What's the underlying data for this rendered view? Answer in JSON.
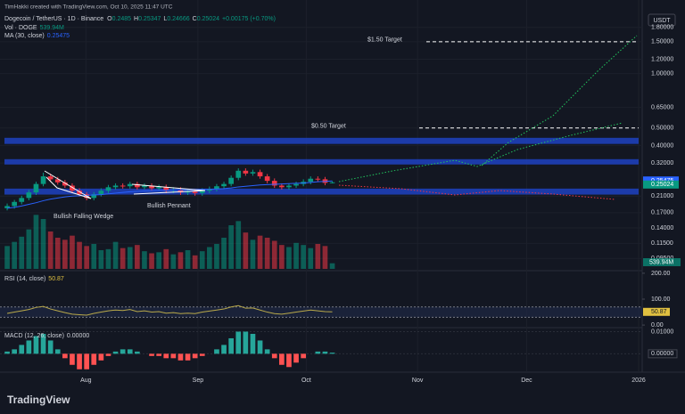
{
  "header": {
    "credit": "TimHakki created with TradingView.com, Oct 10, 2025 11:47 UTC",
    "symbol": "Dogecoin / TetherUS · 1D · Binance",
    "o_label": "O",
    "h_label": "H",
    "l_label": "L",
    "c_label": "C",
    "change": "+0.00175 (+0.70%)",
    "vol_label": "Vol · DOGE",
    "vol_value": "539.94M",
    "ma_label": "MA (30, close)",
    "currency": "USDT"
  },
  "chart_data": {
    "type": "candlestick",
    "log_scale": true,
    "grid": true,
    "up_color": "#089981",
    "down_color": "#f23645",
    "ma_color": "#2962ff",
    "xlim": [
      -0.5,
      87.4
    ],
    "xticks": [
      {
        "value": 10.9,
        "label": "Aug"
      },
      {
        "value": 26.4,
        "label": "Sep"
      },
      {
        "value": 41.4,
        "label": "Oct"
      },
      {
        "value": 56.8,
        "label": "Nov"
      },
      {
        "value": 71.9,
        "label": "Dec"
      },
      {
        "value": 87.4,
        "label": "2026"
      }
    ],
    "ylim": [
      0.085,
      2.33
    ],
    "yticks": [
      {
        "value": 1.8,
        "label": "1.80000"
      },
      {
        "value": 1.5,
        "label": "1.50000"
      },
      {
        "value": 1.2,
        "label": "1.20000"
      },
      {
        "value": 1,
        "label": "1.00000"
      },
      {
        "value": 0.65,
        "label": "0.65000"
      },
      {
        "value": 0.5,
        "label": "0.50000"
      },
      {
        "value": 0.4,
        "label": "0.40000"
      },
      {
        "value": 0.32,
        "label": "0.32000"
      },
      {
        "value": 0.21,
        "label": "0.21000"
      },
      {
        "value": 0.17,
        "label": "0.17000"
      },
      {
        "value": 0.14,
        "label": "0.14000"
      },
      {
        "value": 0.115,
        "label": "0.11500"
      },
      {
        "value": 0.095,
        "label": "0.09500"
      }
    ],
    "open": [
      0.18,
      0.185,
      0.195,
      0.205,
      0.22,
      0.245,
      0.27,
      0.26,
      0.25,
      0.24,
      0.225,
      0.215,
      0.205,
      0.215,
      0.225,
      0.235,
      0.24,
      0.238,
      0.245,
      0.235,
      0.24,
      0.232,
      0.236,
      0.225,
      0.228,
      0.22,
      0.222,
      0.218,
      0.225,
      0.23,
      0.238,
      0.245,
      0.265,
      0.29,
      0.28,
      0.285,
      0.27,
      0.255,
      0.24,
      0.235,
      0.24,
      0.245,
      0.252,
      0.262,
      0.26,
      0.2485
    ],
    "high": [
      0.191,
      0.2,
      0.211,
      0.227,
      0.252,
      0.283,
      0.279,
      0.268,
      0.258,
      0.247,
      0.232,
      0.221,
      0.221,
      0.232,
      0.242,
      0.247,
      0.247,
      0.252,
      0.252,
      0.247,
      0.247,
      0.243,
      0.243,
      0.235,
      0.235,
      0.229,
      0.229,
      0.232,
      0.237,
      0.245,
      0.252,
      0.273,
      0.299,
      0.299,
      0.294,
      0.294,
      0.278,
      0.263,
      0.247,
      0.247,
      0.252,
      0.26,
      0.27,
      0.27,
      0.268,
      0.25347
    ],
    "low": [
      0.175,
      0.179,
      0.189,
      0.199,
      0.213,
      0.238,
      0.252,
      0.243,
      0.233,
      0.218,
      0.209,
      0.199,
      0.199,
      0.209,
      0.218,
      0.228,
      0.231,
      0.231,
      0.228,
      0.228,
      0.225,
      0.225,
      0.218,
      0.218,
      0.213,
      0.213,
      0.211,
      0.211,
      0.218,
      0.223,
      0.231,
      0.238,
      0.257,
      0.272,
      0.272,
      0.262,
      0.247,
      0.233,
      0.228,
      0.228,
      0.233,
      0.238,
      0.244,
      0.252,
      0.241,
      0.24666
    ],
    "close": [
      0.185,
      0.195,
      0.205,
      0.22,
      0.245,
      0.27,
      0.26,
      0.25,
      0.24,
      0.225,
      0.215,
      0.205,
      0.215,
      0.225,
      0.235,
      0.24,
      0.238,
      0.245,
      0.235,
      0.24,
      0.232,
      0.236,
      0.225,
      0.228,
      0.22,
      0.222,
      0.218,
      0.225,
      0.23,
      0.238,
      0.245,
      0.265,
      0.29,
      0.28,
      0.285,
      0.27,
      0.255,
      0.24,
      0.235,
      0.24,
      0.245,
      0.252,
      0.262,
      0.26,
      0.2485,
      0.25024
    ],
    "ma": [
      0.18,
      0.182,
      0.185,
      0.189,
      0.193,
      0.198,
      0.202,
      0.205,
      0.208,
      0.21,
      0.211,
      0.212,
      0.213,
      0.214,
      0.216,
      0.218,
      0.22,
      0.222,
      0.223,
      0.224,
      0.225,
      0.226,
      0.226,
      0.227,
      0.227,
      0.228,
      0.228,
      0.229,
      0.229,
      0.23,
      0.231,
      0.233,
      0.236,
      0.238,
      0.24,
      0.242,
      0.243,
      0.244,
      0.245,
      0.246,
      0.247,
      0.248,
      0.25,
      0.252,
      0.253,
      0.25475
    ],
    "volume_lim": [
      0,
      6000
    ],
    "volume": [
      2200,
      2600,
      3100,
      3800,
      5200,
      4800,
      3600,
      3000,
      2800,
      3200,
      2600,
      2200,
      2400,
      1800,
      1900,
      2600,
      2000,
      2100,
      2300,
      1700,
      1500,
      1600,
      1900,
      1400,
      1600,
      1800,
      1300,
      1700,
      2100,
      2400,
      3000,
      4200,
      4600,
      3500,
      2800,
      3200,
      3000,
      2700,
      2300,
      2100,
      2500,
      2300,
      2000,
      2400,
      2200,
      539.94
    ],
    "volume_last_label": "539.94M",
    "zones": [
      [
        0.408,
        0.441
      ],
      [
        0.314,
        0.336
      ],
      [
        0.214,
        0.231
      ]
    ],
    "targets": [
      {
        "label": "$1.50 Target",
        "value": 1.5
      },
      {
        "label": "$0.50 Target",
        "value": 0.5
      }
    ],
    "annotations": {
      "wedge": "Bullish Falling Wedge",
      "pennant": "Bullish Pennant"
    },
    "rsi": {
      "title": "RSI (14, close)",
      "color": "#b9a94a",
      "ylim": [
        -10,
        210
      ],
      "yticks": [
        {
          "value": 200,
          "label": "200.00"
        },
        {
          "value": 100,
          "label": "100.00"
        },
        {
          "value": 0,
          "label": "0.00"
        }
      ],
      "bands": [
        70,
        30
      ],
      "values": [
        45,
        50,
        55,
        60,
        68,
        72,
        62,
        55,
        48,
        42,
        40,
        38,
        45,
        50,
        55,
        58,
        56,
        60,
        52,
        55,
        50,
        52,
        46,
        48,
        44,
        46,
        44,
        50,
        54,
        58,
        62,
        70,
        75,
        65,
        66,
        58,
        50,
        44,
        42,
        46,
        50,
        54,
        58,
        55,
        52,
        50.87
      ]
    },
    "macd": {
      "title": "MACD (12, 26, close)",
      "value": {
        "value": 0,
        "label": "0.00000"
      },
      "ylim": [
        -0.0075,
        0.011
      ],
      "yticks": [
        {
          "value": 0.01,
          "label": "0.01000"
        },
        {
          "value": 0,
          "label": "0.00000"
        }
      ],
      "histogram": [
        0.001,
        0.002,
        0.004,
        0.006,
        0.008,
        0.009,
        0.006,
        0.002,
        -0.002,
        -0.005,
        -0.007,
        -0.007,
        -0.005,
        -0.003,
        -0.001,
        0.001,
        0.002,
        0.002,
        0.001,
        0,
        -0.001,
        -0.001,
        -0.002,
        -0.002,
        -0.003,
        -0.003,
        -0.002,
        -0.001,
        0,
        0.002,
        0.004,
        0.007,
        0.01,
        0.01,
        0.009,
        0.006,
        0.002,
        -0.002,
        -0.005,
        -0.006,
        -0.004,
        -0.002,
        0,
        0.001,
        0.001,
        0.0005
      ]
    }
  },
  "footer": {
    "brand": "TradingView"
  }
}
